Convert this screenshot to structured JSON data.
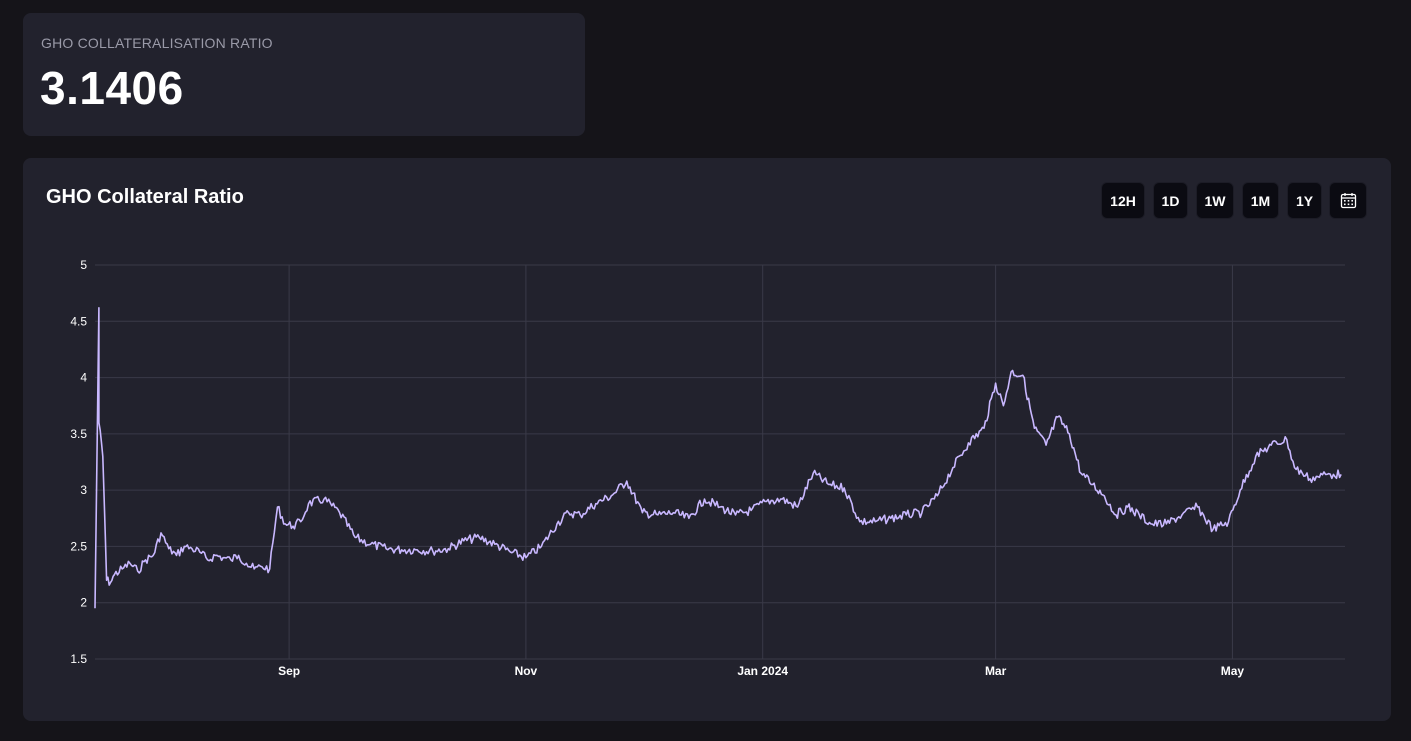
{
  "stat": {
    "label": "GHO COLLATERALISATION RATIO",
    "value": "3.1406"
  },
  "chart_header": {
    "title": "GHO Collateral Ratio",
    "ranges": [
      "12H",
      "1D",
      "1W",
      "1M",
      "1Y"
    ],
    "calendar_icon": "calendar-icon"
  },
  "colors": {
    "line": "#c9b8ff",
    "grid": "#3a3a48",
    "card": "#22222d",
    "page": "#151419"
  },
  "chart_data": {
    "type": "line",
    "title": "GHO Collateral Ratio",
    "xlabel": "",
    "ylabel": "",
    "ylim": [
      1.5,
      5
    ],
    "xlim": [
      "2023-07-13",
      "2024-05-30"
    ],
    "y_ticks": [
      1.5,
      2,
      2.5,
      3,
      3.5,
      4,
      4.5,
      5
    ],
    "y_tick_labels": [
      "1.5",
      "2",
      "2.5",
      "3",
      "3.5",
      "4",
      "4.5",
      "5"
    ],
    "x_ticks": [
      {
        "date": "2023-09-01",
        "label": "Sep"
      },
      {
        "date": "2023-11-01",
        "label": "Nov"
      },
      {
        "date": "2024-01-01",
        "label": "Jan 2024"
      },
      {
        "date": "2024-03-01",
        "label": "Mar"
      },
      {
        "date": "2024-05-01",
        "label": "May"
      }
    ],
    "grid": true,
    "legend": "none",
    "series": [
      {
        "x": [
          "2023-07-13",
          "2023-07-14",
          "2023-07-14",
          "2023-07-15",
          "2023-07-16",
          "2023-07-17",
          "2023-07-18",
          "2023-07-20",
          "2023-07-22",
          "2023-07-24",
          "2023-07-26",
          "2023-07-28",
          "2023-07-30",
          "2023-08-01",
          "2023-08-03",
          "2023-08-05",
          "2023-08-07",
          "2023-08-09",
          "2023-08-11",
          "2023-08-13",
          "2023-08-15",
          "2023-08-17",
          "2023-08-19",
          "2023-08-21",
          "2023-08-23",
          "2023-08-25",
          "2023-08-27",
          "2023-08-29",
          "2023-08-31",
          "2023-09-02",
          "2023-09-04",
          "2023-09-06",
          "2023-09-10",
          "2023-09-14",
          "2023-09-18",
          "2023-09-22",
          "2023-09-26",
          "2023-09-30",
          "2023-10-04",
          "2023-10-08",
          "2023-10-12",
          "2023-10-16",
          "2023-10-20",
          "2023-10-24",
          "2023-10-28",
          "2023-11-01",
          "2023-11-05",
          "2023-11-09",
          "2023-11-12",
          "2023-11-15",
          "2023-11-19",
          "2023-11-23",
          "2023-11-27",
          "2023-12-01",
          "2023-12-05",
          "2023-12-09",
          "2023-12-13",
          "2023-12-17",
          "2023-12-21",
          "2023-12-25",
          "2023-12-29",
          "2024-01-02",
          "2024-01-06",
          "2024-01-10",
          "2024-01-14",
          "2024-01-18",
          "2024-01-22",
          "2024-01-26",
          "2024-01-30",
          "2024-02-03",
          "2024-02-07",
          "2024-02-11",
          "2024-02-15",
          "2024-02-19",
          "2024-02-23",
          "2024-02-27",
          "2024-03-01",
          "2024-03-03",
          "2024-03-05",
          "2024-03-08",
          "2024-03-11",
          "2024-03-14",
          "2024-03-17",
          "2024-03-20",
          "2024-03-23",
          "2024-03-26",
          "2024-03-29",
          "2024-04-01",
          "2024-04-04",
          "2024-04-07",
          "2024-04-10",
          "2024-04-14",
          "2024-04-18",
          "2024-04-22",
          "2024-04-26",
          "2024-04-30",
          "2024-05-03",
          "2024-05-07",
          "2024-05-11",
          "2024-05-15",
          "2024-05-17",
          "2024-05-19",
          "2024-05-21",
          "2024-05-23",
          "2024-05-25",
          "2024-05-27",
          "2024-05-29"
        ],
        "y": [
          1.95,
          4.62,
          3.6,
          3.3,
          2.2,
          2.18,
          2.25,
          2.3,
          2.35,
          2.28,
          2.38,
          2.42,
          2.62,
          2.48,
          2.42,
          2.5,
          2.48,
          2.45,
          2.38,
          2.42,
          2.4,
          2.38,
          2.42,
          2.35,
          2.3,
          2.32,
          2.3,
          2.85,
          2.7,
          2.68,
          2.72,
          2.88,
          2.92,
          2.8,
          2.58,
          2.52,
          2.48,
          2.47,
          2.47,
          2.46,
          2.48,
          2.55,
          2.58,
          2.52,
          2.45,
          2.4,
          2.5,
          2.7,
          2.8,
          2.78,
          2.88,
          2.95,
          3.08,
          2.8,
          2.78,
          2.8,
          2.75,
          2.92,
          2.85,
          2.78,
          2.82,
          2.9,
          2.92,
          2.85,
          3.15,
          3.05,
          3.02,
          2.72,
          2.72,
          2.75,
          2.78,
          2.8,
          2.95,
          3.2,
          3.42,
          3.55,
          3.95,
          3.75,
          4.05,
          4.02,
          3.55,
          3.4,
          3.65,
          3.5,
          3.15,
          3.05,
          2.95,
          2.78,
          2.85,
          2.78,
          2.7,
          2.7,
          2.78,
          2.85,
          2.65,
          2.72,
          3.0,
          3.3,
          3.4,
          3.45,
          3.2,
          3.15,
          3.1,
          3.12,
          3.14,
          3.14,
          3.14
        ]
      }
    ]
  }
}
